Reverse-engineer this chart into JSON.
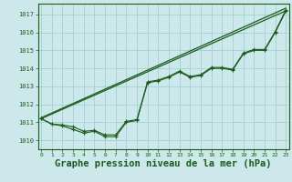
{
  "background_color": "#cce8ea",
  "plot_bg_color": "#cce8ea",
  "grid_color": "#99cccc",
  "line_color": "#1a5c1a",
  "xlabel": "Graphe pression niveau de la mer (hPa)",
  "xlabel_fontsize": 7.5,
  "ylim": [
    1009.5,
    1017.6
  ],
  "xlim": [
    -0.3,
    23.3
  ],
  "yticks": [
    1010,
    1011,
    1012,
    1013,
    1014,
    1015,
    1016,
    1017
  ],
  "xticks": [
    0,
    1,
    2,
    3,
    4,
    5,
    6,
    7,
    8,
    9,
    10,
    11,
    12,
    13,
    14,
    15,
    16,
    17,
    18,
    19,
    20,
    21,
    22,
    23
  ],
  "series1": [
    1011.2,
    1010.9,
    1010.8,
    1010.6,
    1010.4,
    1010.5,
    1010.2,
    1010.2,
    1011.0,
    1011.1,
    1013.2,
    1013.3,
    1013.5,
    1013.8,
    1013.5,
    1013.6,
    1014.0,
    1014.0,
    1013.9,
    1014.8,
    1015.0,
    1015.0,
    1016.0,
    1017.2
  ],
  "series2": [
    1011.2,
    1010.9,
    1010.85,
    1010.75,
    1010.5,
    1010.55,
    1010.3,
    1010.3,
    1011.05,
    1011.15,
    1013.25,
    1013.35,
    1013.55,
    1013.85,
    1013.55,
    1013.65,
    1014.05,
    1014.05,
    1013.95,
    1014.85,
    1015.05,
    1015.05,
    1016.05,
    1017.25
  ],
  "line1_x": [
    0,
    23
  ],
  "line1_y": [
    1011.2,
    1017.2
  ],
  "line2_x": [
    0,
    23
  ],
  "line2_y": [
    1011.25,
    1017.35
  ]
}
